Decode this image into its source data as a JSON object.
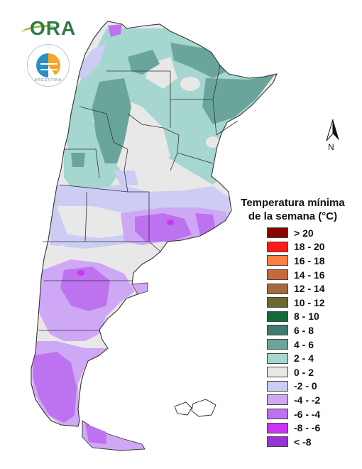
{
  "logos": {
    "primary_text": "ORA",
    "secondary_text": "ARGENTINA"
  },
  "compass": {
    "label": "N"
  },
  "legend": {
    "title_line1": "Temperatura mínima",
    "title_line2": "de la semana (°C)",
    "items": [
      {
        "label": "> 20",
        "color": "#8b0000"
      },
      {
        "label": "18 - 20",
        "color": "#ff1a1a"
      },
      {
        "label": "16 - 18",
        "color": "#ff7f3f"
      },
      {
        "label": "14 - 16",
        "color": "#c8683a"
      },
      {
        "label": "12 - 14",
        "color": "#a36a3c"
      },
      {
        "label": "10 - 12",
        "color": "#6b6a2e"
      },
      {
        "label": "8 - 10",
        "color": "#0f6b3a"
      },
      {
        "label": "6 - 8",
        "color": "#3f7a73"
      },
      {
        "label": "4 - 6",
        "color": "#6aa59c"
      },
      {
        "label": "2 - 4",
        "color": "#a5d6cf"
      },
      {
        "label": "0 - 2",
        "color": "#e8e8e8"
      },
      {
        "label": "-2 - 0",
        "color": "#ccccf5"
      },
      {
        "label": "-4 - -2",
        "color": "#cfa8f5"
      },
      {
        "label": "-6 - -4",
        "color": "#bd72f0"
      },
      {
        "label": "-8 - -6",
        "color": "#cc33f5"
      },
      {
        "label": "< -8",
        "color": "#9a33d6"
      }
    ]
  }
}
